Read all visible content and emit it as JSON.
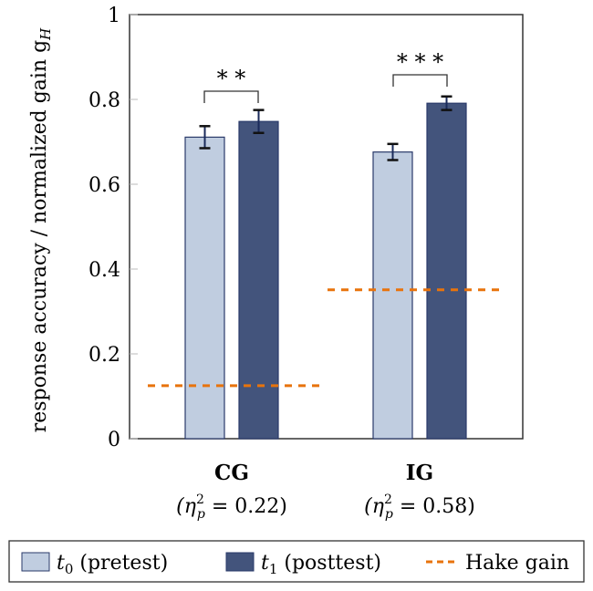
{
  "chart_data": {
    "type": "bar",
    "ylabel": "response accuracy / normalized gain g",
    "ylabel_sub": "H",
    "ylim": [
      0,
      1
    ],
    "yticks": [
      "0",
      "0.2",
      "0.4",
      "0.6",
      "0.8",
      "1"
    ],
    "categories": [
      {
        "name": "CG",
        "effect": "(η",
        "effect_sub": "p",
        "effect_sup": "2",
        "effect_val": " = 0.22)",
        "significance": "* *"
      },
      {
        "name": "IG",
        "effect": "(η",
        "effect_sub": "p",
        "effect_sup": "2",
        "effect_val": " = 0.58)",
        "significance": "* * *"
      }
    ],
    "series": [
      {
        "name": "t",
        "sub": "0",
        "label": " (pretest)",
        "values": [
          0.711,
          0.676
        ],
        "errors": [
          0.026,
          0.019
        ],
        "color": "#c0cde0"
      },
      {
        "name": "t",
        "sub": "1",
        "label": " (posttest)",
        "values": [
          0.748,
          0.791
        ],
        "errors": [
          0.027,
          0.016
        ],
        "color": "#43547c"
      }
    ],
    "hake_gain": {
      "label": "Hake gain",
      "values": [
        0.125,
        0.351
      ],
      "color": "#e8730c"
    },
    "legend": "bottom"
  }
}
